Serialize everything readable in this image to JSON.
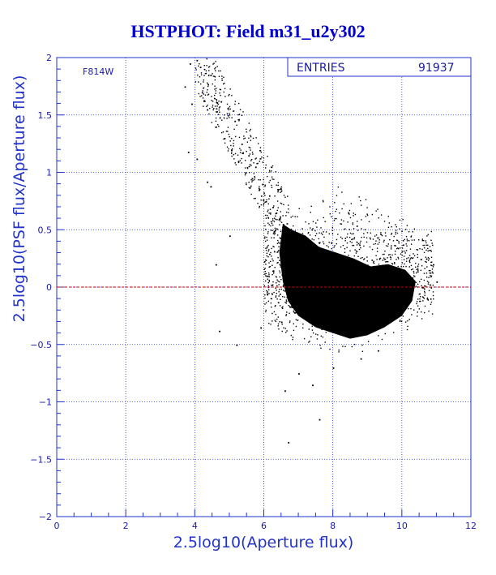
{
  "chart_data": {
    "type": "scatter",
    "title": "HSTPHOT: Field m31_u2y302",
    "xlabel": "2.5log10(Aperture flux)",
    "ylabel": "2.5log10(PSF flux/Aperture flux)",
    "xlim": [
      0,
      12
    ],
    "ylim": [
      -2,
      2
    ],
    "xticks": [
      0,
      2,
      4,
      6,
      8,
      10,
      12
    ],
    "yticks": [
      -2,
      -1.5,
      -1,
      -0.5,
      0,
      0.5,
      1,
      1.5,
      2
    ],
    "xtick_labels": [
      "0",
      "2",
      "4",
      "6",
      "8",
      "10",
      "12"
    ],
    "ytick_labels": [
      "−2",
      "−1.5",
      "−1",
      "−0.5",
      "0",
      "0.5",
      "1",
      "1.5",
      "2"
    ],
    "grid": true,
    "filter_label": "F814W",
    "stats": {
      "label": "ENTRIES",
      "value": "91937"
    },
    "reference_line": {
      "y": 0,
      "color": "#cc0000",
      "style": "dashed"
    },
    "dense_region": {
      "x_center": 8.2,
      "y_center": 0.05,
      "x_range": [
        6.6,
        10.4
      ],
      "y_range": [
        -0.45,
        0.45
      ]
    },
    "series": [
      {
        "values": [
          [
            3.85,
            1.95
          ],
          [
            4.05,
            1.98
          ],
          [
            4.15,
            1.92
          ],
          [
            3.7,
            1.75
          ],
          [
            3.9,
            1.6
          ],
          [
            4.2,
            1.7
          ],
          [
            4.35,
            1.55
          ],
          [
            4.45,
            1.85
          ],
          [
            4.6,
            1.4
          ],
          [
            4.75,
            1.62
          ],
          [
            4.85,
            1.3
          ],
          [
            4.95,
            1.5
          ],
          [
            5.05,
            1.2
          ],
          [
            5.15,
            1.45
          ],
          [
            5.25,
            1.1
          ],
          [
            5.35,
            1.25
          ],
          [
            5.45,
            1.0
          ],
          [
            5.55,
            1.15
          ],
          [
            5.65,
            0.95
          ],
          [
            5.75,
            1.05
          ],
          [
            5.85,
            0.85
          ],
          [
            5.95,
            0.9
          ],
          [
            6.05,
            0.75
          ],
          [
            6.15,
            0.8
          ],
          [
            6.25,
            0.7
          ],
          [
            6.35,
            0.65
          ],
          [
            6.45,
            0.6
          ],
          [
            6.55,
            0.55
          ],
          [
            3.8,
            1.18
          ],
          [
            4.05,
            1.12
          ],
          [
            4.35,
            0.92
          ],
          [
            4.45,
            0.88
          ],
          [
            5.0,
            0.45
          ],
          [
            4.6,
            0.2
          ],
          [
            4.7,
            -0.38
          ],
          [
            5.2,
            -0.5
          ],
          [
            5.9,
            -0.35
          ],
          [
            6.1,
            0.1
          ],
          [
            6.5,
            -0.3
          ],
          [
            7.0,
            -0.75
          ],
          [
            6.6,
            -0.9
          ],
          [
            7.4,
            -0.85
          ],
          [
            7.6,
            -1.15
          ],
          [
            6.7,
            -1.35
          ],
          [
            8.0,
            -0.7
          ],
          [
            8.8,
            -0.62
          ],
          [
            9.3,
            -0.55
          ],
          [
            10.0,
            -0.2
          ],
          [
            10.6,
            0.0
          ],
          [
            10.9,
            0.2
          ],
          [
            11.0,
            0.05
          ],
          [
            10.7,
            0.25
          ]
        ]
      }
    ]
  }
}
